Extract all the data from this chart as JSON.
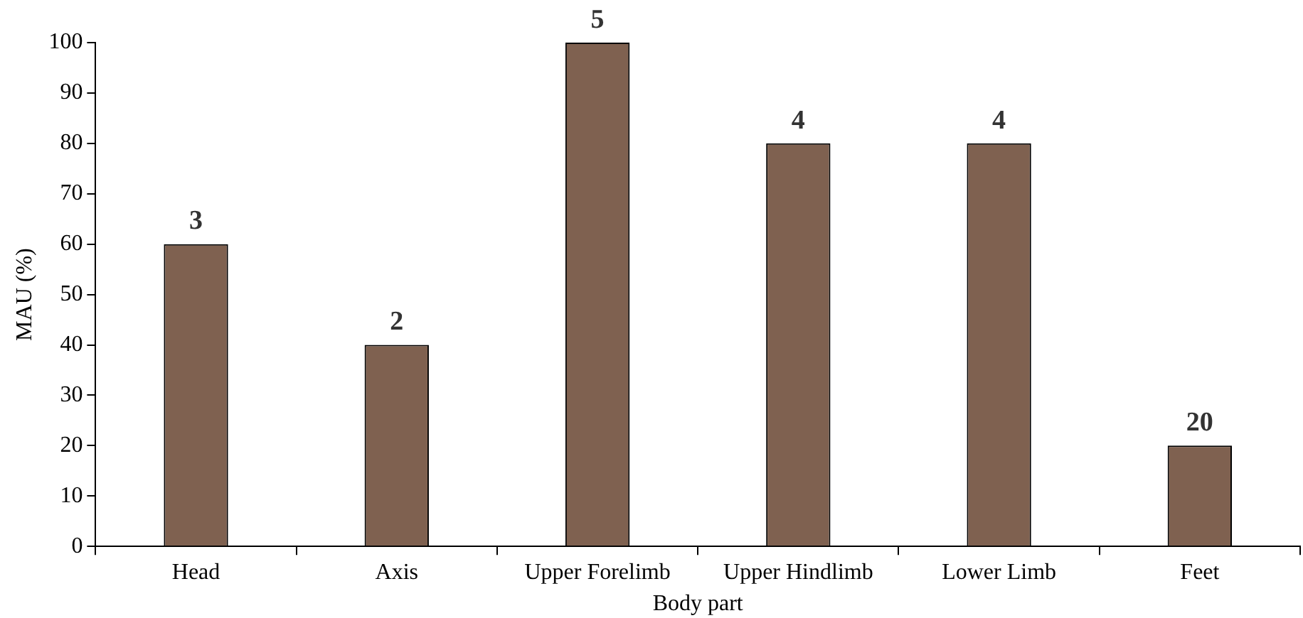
{
  "chart_data": {
    "type": "bar",
    "xlabel": "Body part",
    "ylabel": "MAU (%)",
    "categories": [
      "Head",
      "Axis",
      "Upper Forelimb",
      "Upper Hindlimb",
      "Lower Limb",
      "Feet"
    ],
    "values": [
      60,
      40,
      100,
      80,
      80,
      20
    ],
    "color": "#7f6150",
    "ylim": [
      0,
      100
    ],
    "yticks": [
      0,
      10,
      20,
      30,
      40,
      50,
      60,
      70,
      80,
      90,
      100
    ],
    "grid": false,
    "annotations": [
      {
        "text": "3",
        "x": "Head",
        "y": 60
      },
      {
        "text": "2",
        "x": "Axis",
        "y": 40
      },
      {
        "text": "5",
        "x": "Upper Forelimb",
        "y": 100
      },
      {
        "text": "4",
        "x": "Upper Hindlimb",
        "y": 80
      },
      {
        "text": "4",
        "x": "Lower Limb",
        "y": 80
      },
      {
        "text": "20",
        "x": "Feet",
        "y": 20
      }
    ]
  }
}
